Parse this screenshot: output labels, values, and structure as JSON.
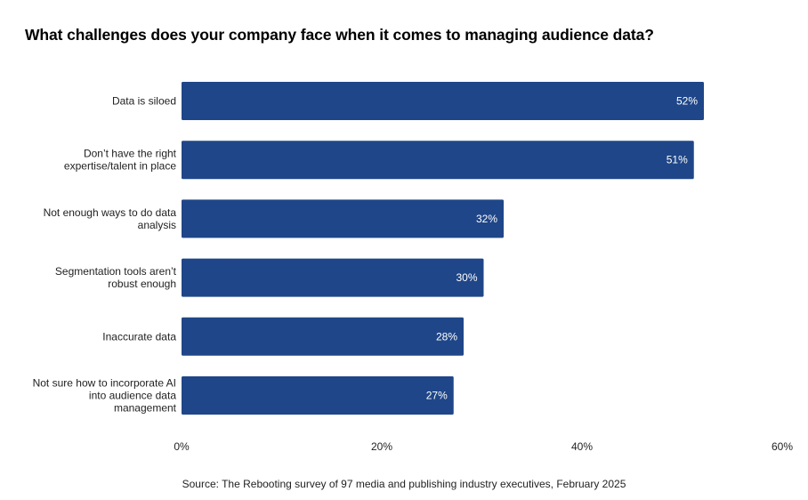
{
  "chart_data": {
    "type": "bar",
    "orientation": "horizontal",
    "title": "What challenges does your company face when it comes to managing audience data?",
    "categories": [
      "Data is siloed",
      "Don’t have the right expertise/talent in place",
      "Not enough ways to do data analysis",
      "Segmentation tools aren’t robust enough",
      "Inaccurate data",
      "Not sure how to incorporate AI into audience data management"
    ],
    "category_lines": [
      [
        "Data is siloed"
      ],
      [
        "Don’t have the right",
        "expertise/talent in place"
      ],
      [
        "Not enough ways to do data",
        "analysis"
      ],
      [
        "Segmentation tools aren’t",
        "robust enough"
      ],
      [
        "Inaccurate data"
      ],
      [
        "Not sure how to incorporate AI",
        "into audience data",
        "management"
      ]
    ],
    "values": [
      52,
      51,
      32,
      30,
      28,
      27
    ],
    "value_labels": [
      "52%",
      "51%",
      "32%",
      "30%",
      "28%",
      "27%"
    ],
    "xlabel": "",
    "ylabel": "",
    "xlim": [
      0,
      60
    ],
    "xticks": [
      0,
      20,
      40,
      60
    ],
    "xtick_labels": [
      "0%",
      "20%",
      "40%",
      "60%"
    ],
    "grid": false,
    "legend": "none",
    "bar_color": "#1f4688",
    "source": "Source: The Rebooting survey of 97 media and publishing industry executives, February 2025"
  }
}
